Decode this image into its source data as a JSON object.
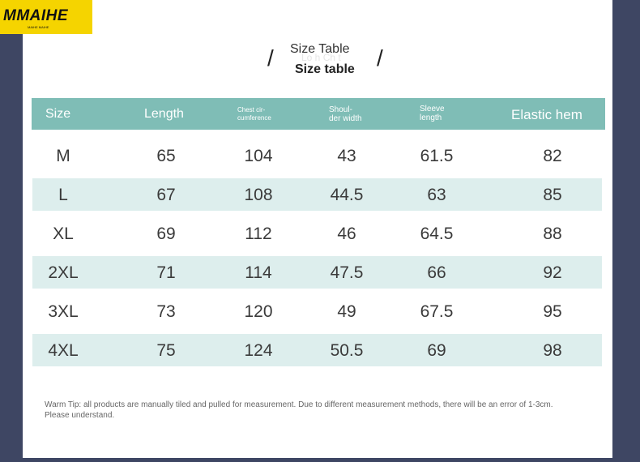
{
  "brand": {
    "name": "MMAIHE",
    "tagline": "MAIHE MAIHE"
  },
  "title": {
    "line1": "Size Table",
    "line2": "Size table",
    "ghost": "Lo h Ch t",
    "slash": "/"
  },
  "table": {
    "headers": [
      {
        "text": "Size"
      },
      {
        "text": "Length"
      },
      {
        "text_line1": "Chest cir-",
        "text_line2": "cumference"
      },
      {
        "text_line1": "Shoul-",
        "text_line2": "der width"
      },
      {
        "text_line1": "Sleeve",
        "text_line2": "length"
      },
      {
        "text": "Elastic hem"
      }
    ],
    "rows": [
      [
        "M",
        "65",
        "104",
        "43",
        "61.5",
        "82"
      ],
      [
        "L",
        "67",
        "108",
        "44.5",
        "63",
        "85"
      ],
      [
        "XL",
        "69",
        "112",
        "46",
        "64.5",
        "88"
      ],
      [
        "2XL",
        "71",
        "114",
        "47.5",
        "66",
        "92"
      ],
      [
        "3XL",
        "73",
        "120",
        "49",
        "67.5",
        "95"
      ],
      [
        "4XL",
        "75",
        "124",
        "50.5",
        "69",
        "98"
      ]
    ]
  },
  "tip": "Warm Tip: all products are manually tiled and pulled for measurement. Due to different measurement methods, there will be an error of 1-3cm. Please understand.",
  "colors": {
    "header": "#7fbdb6",
    "stripe": "#ddeeed",
    "logo_bg": "#f5d400",
    "background": "#3e4663"
  }
}
